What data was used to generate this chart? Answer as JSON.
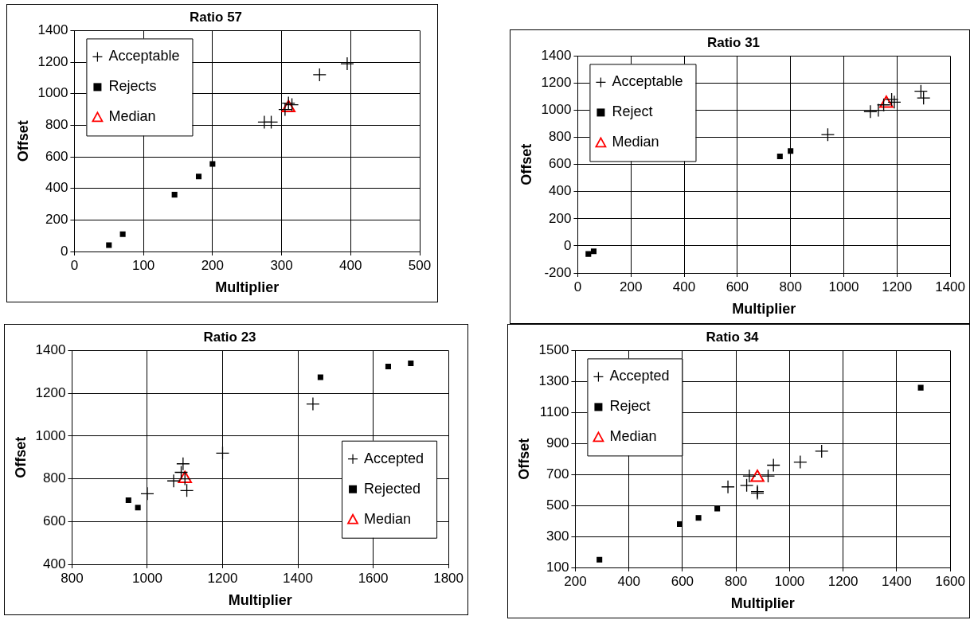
{
  "chart_data": [
    {
      "type": "scatter",
      "title": "Ratio 57",
      "xlabel": "Multiplier",
      "ylabel": "Offset",
      "xlim": [
        0,
        500
      ],
      "xticks": [
        0,
        100,
        200,
        300,
        400,
        500
      ],
      "ylim": [
        0,
        1400
      ],
      "yticks": [
        0,
        200,
        400,
        600,
        800,
        1000,
        1200,
        1400
      ],
      "grid": true,
      "legend": "top left",
      "series": [
        {
          "name": "Acceptable",
          "color": "#000000",
          "marker": "cross",
          "x": [
            275,
            285,
            305,
            310,
            315,
            355,
            395
          ],
          "values": [
            820,
            820,
            900,
            940,
            930,
            1120,
            1190
          ]
        },
        {
          "name": "Rejects",
          "color": "#000000",
          "marker": "square",
          "x": [
            50,
            70,
            145,
            180,
            200
          ],
          "values": [
            40,
            110,
            360,
            475,
            555
          ]
        },
        {
          "name": "Median",
          "color": "#ff0000",
          "marker": "triangle",
          "x": [
            310
          ],
          "values": [
            910
          ]
        }
      ]
    },
    {
      "type": "scatter",
      "title": "Ratio 31",
      "xlabel": "Multiplier",
      "ylabel": "Offset",
      "xlim": [
        0,
        1400
      ],
      "xticks": [
        0,
        200,
        400,
        600,
        800,
        1000,
        1200,
        1400
      ],
      "ylim": [
        -200,
        1400
      ],
      "yticks": [
        -200,
        0,
        200,
        400,
        600,
        800,
        1000,
        1200,
        1400
      ],
      "grid": true,
      "legend": "top left",
      "series": [
        {
          "name": "Acceptable",
          "color": "#000000",
          "marker": "cross",
          "x": [
            940,
            1100,
            1130,
            1150,
            1180,
            1190,
            1290,
            1300
          ],
          "values": [
            820,
            990,
            1000,
            1040,
            1080,
            1060,
            1140,
            1090
          ]
        },
        {
          "name": "Reject",
          "color": "#000000",
          "marker": "square",
          "x": [
            40,
            60,
            760,
            800
          ],
          "values": [
            -60,
            -40,
            660,
            700
          ]
        },
        {
          "name": "Median",
          "color": "#ff0000",
          "marker": "triangle",
          "x": [
            1160
          ],
          "values": [
            1050
          ]
        }
      ]
    },
    {
      "type": "scatter",
      "title": "Ratio 23",
      "xlabel": "Multiplier",
      "ylabel": "Offset",
      "xlim": [
        800,
        1800
      ],
      "xticks": [
        800,
        1000,
        1200,
        1400,
        1600,
        1800
      ],
      "ylim": [
        400,
        1400
      ],
      "yticks": [
        400,
        600,
        800,
        1000,
        1200,
        1400
      ],
      "grid": true,
      "legend": "right",
      "series": [
        {
          "name": "Accepted",
          "color": "#000000",
          "marker": "cross",
          "x": [
            1000,
            1070,
            1090,
            1095,
            1100,
            1105,
            1200,
            1440
          ],
          "values": [
            730,
            790,
            830,
            870,
            800,
            745,
            920,
            1150
          ]
        },
        {
          "name": "Rejected",
          "color": "#000000",
          "marker": "square",
          "x": [
            950,
            975,
            1460,
            1640,
            1700
          ],
          "values": [
            700,
            665,
            1275,
            1325,
            1340
          ]
        },
        {
          "name": "Median",
          "color": "#ff0000",
          "marker": "triangle",
          "x": [
            1100
          ],
          "values": [
            800
          ]
        }
      ]
    },
    {
      "type": "scatter",
      "title": "Ratio 34",
      "xlabel": "Multiplier",
      "ylabel": "Offset",
      "xlim": [
        200,
        1600
      ],
      "xticks": [
        200,
        400,
        600,
        800,
        1000,
        1200,
        1400,
        1600
      ],
      "ylim": [
        100,
        1500
      ],
      "yticks": [
        100,
        300,
        500,
        700,
        900,
        1100,
        1300,
        1500
      ],
      "grid": true,
      "legend": "top left",
      "series": [
        {
          "name": "Accepted",
          "color": "#000000",
          "marker": "cross",
          "x": [
            770,
            840,
            850,
            880,
            880,
            920,
            940,
            1040,
            1120
          ],
          "values": [
            620,
            630,
            690,
            590,
            580,
            690,
            760,
            780,
            850
          ]
        },
        {
          "name": "Reject",
          "color": "#000000",
          "marker": "square",
          "x": [
            290,
            590,
            660,
            730,
            1490
          ],
          "values": [
            150,
            380,
            420,
            480,
            1260
          ]
        },
        {
          "name": "Median",
          "color": "#ff0000",
          "marker": "triangle",
          "x": [
            880
          ],
          "values": [
            680
          ]
        }
      ]
    }
  ]
}
